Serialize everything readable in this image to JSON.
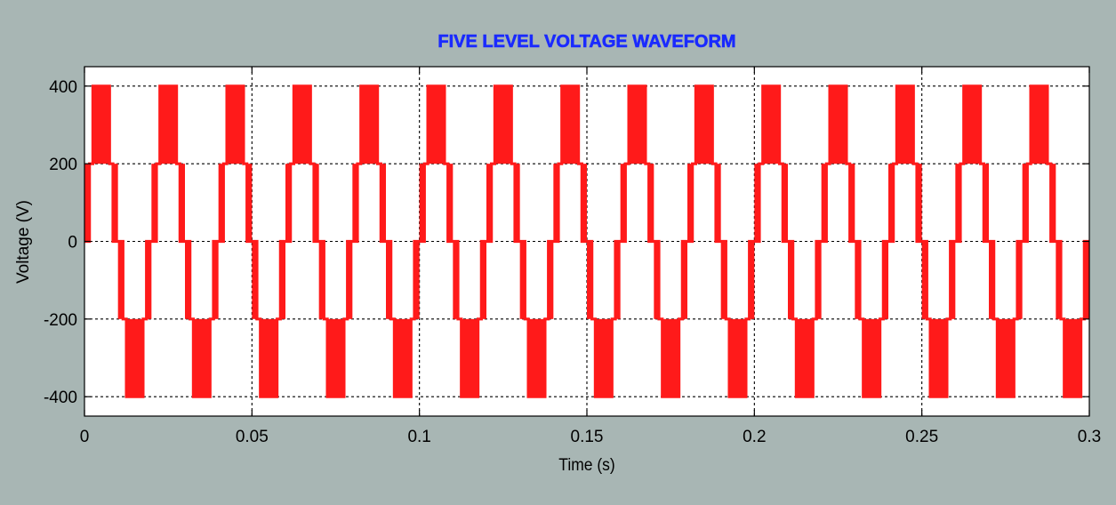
{
  "chart_data": {
    "type": "line",
    "title": "FIVE LEVEL VOLTAGE WAVEFORM",
    "xlabel": "Time (s)",
    "ylabel": "Voltage (V)",
    "xlim": [
      0,
      0.3
    ],
    "ylim": [
      -450,
      450
    ],
    "x_ticks": [
      0,
      0.05,
      0.1,
      0.15,
      0.2,
      0.25,
      0.3
    ],
    "x_tick_labels": [
      "0",
      "0.05",
      "0.1",
      "0.15",
      "0.2",
      "0.25",
      "0.3"
    ],
    "y_ticks": [
      400,
      200,
      0,
      -200,
      -400
    ],
    "y_tick_labels": [
      "400",
      "200",
      "0",
      "-200",
      "-400"
    ],
    "grid": true,
    "levels": [
      -400,
      -200,
      0,
      200,
      400
    ],
    "fundamental_frequency_hz": 50,
    "series": [
      {
        "name": "",
        "description": "",
        "period_s": 0.02,
        "breakpoints": [
          {
            "t": 0.0,
            "v": 0
          },
          {
            "t": 0.0015,
            "v": 200
          },
          {
            "t": 0.0025,
            "v": 400
          },
          {
            "t": 0.0075,
            "v": 200
          },
          {
            "t": 0.0085,
            "v": 0
          },
          {
            "t": 0.0115,
            "v": -200
          },
          {
            "t": 0.0125,
            "v": -400
          },
          {
            "t": 0.0175,
            "v": -200
          },
          {
            "t": 0.0185,
            "v": 0
          }
        ],
        "pwm_zones": [
          {
            "from_s": 0.0,
            "to_s": 0.0015,
            "between": [
              0,
              200
            ]
          },
          {
            "from_s": 0.0025,
            "to_s": 0.0075,
            "between": [
              200,
              400
            ]
          },
          {
            "from_s": 0.0085,
            "to_s": 0.01,
            "between": [
              0,
              200
            ]
          },
          {
            "from_s": 0.01,
            "to_s": 0.0115,
            "between": [
              -200,
              0
            ]
          },
          {
            "from_s": 0.0125,
            "to_s": 0.0175,
            "between": [
              -400,
              -200
            ]
          },
          {
            "from_s": 0.0185,
            "to_s": 0.02,
            "between": [
              -200,
              0
            ]
          }
        ],
        "color": "#ff1a1a"
      }
    ]
  },
  "colors": {
    "background": "#a8b6b4",
    "plot_area": "#ffffff",
    "title": "#1a2aff",
    "waveform": "#ff1a1a",
    "grid": "#000000"
  }
}
